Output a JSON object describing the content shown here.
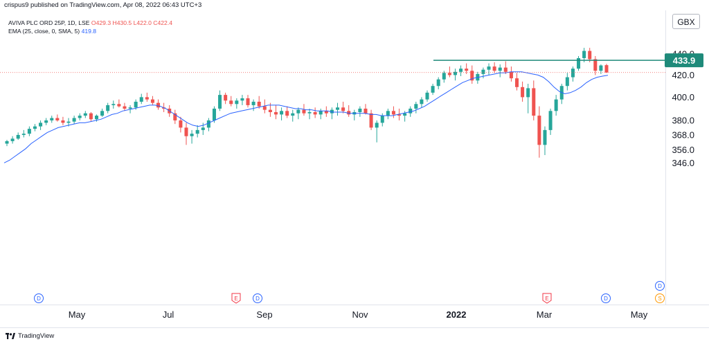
{
  "header": {
    "publisher": "crispus9 published on TradingView.com, Apr 08, 2022 06:43 UTC+3"
  },
  "legend": {
    "symbol": "AVIVA PLC ORD 25P, 1D, LSE",
    "open": "O429.3",
    "high": "H430.5",
    "low": "L422.0",
    "close": "C422.4",
    "ema_label": "EMA (25, close, 0, SMA, 5)",
    "ema_value": "419.8"
  },
  "currency": "GBX",
  "footer": {
    "brand": "TradingView"
  },
  "colors": {
    "up": "#26a69a",
    "down": "#ef5350",
    "ema": "#2962ff",
    "level": "#1e8a7a",
    "last_price": "#ef5350"
  },
  "chart_data": {
    "type": "candlestick",
    "y_ticks": [
      "440.0",
      "420.0",
      "400.0",
      "380.0",
      "368.0",
      "356.0",
      "346.0"
    ],
    "x_ticks": [
      "May",
      "Jul",
      "Sep",
      "Nov",
      "2022",
      "Mar",
      "May"
    ],
    "y_range": [
      338,
      452
    ],
    "y_scale": "log",
    "level_line": {
      "value": 433.9,
      "label": "433.9"
    },
    "last_price": 422.4,
    "events": [
      {
        "type": "D",
        "label": "D"
      },
      {
        "type": "E",
        "label": "E"
      },
      {
        "type": "D",
        "label": "D"
      },
      {
        "type": "E",
        "label": "E"
      },
      {
        "type": "D",
        "label": "D"
      },
      {
        "type": "D",
        "label": "D"
      },
      {
        "type": "S",
        "label": "S"
      }
    ],
    "ema_series": [
      346,
      348,
      351,
      354,
      357,
      361,
      364,
      367,
      370,
      372,
      374,
      375,
      376,
      377,
      378,
      378,
      379,
      380,
      381,
      383,
      385,
      386,
      388,
      389,
      390,
      391,
      392,
      393,
      393,
      392,
      390,
      387,
      384,
      381,
      378,
      376,
      375,
      376,
      378,
      380,
      382,
      384,
      386,
      387,
      388,
      389,
      390,
      391,
      392,
      393,
      393,
      393,
      392,
      391,
      390,
      390,
      389,
      389,
      388,
      388,
      388,
      387,
      387,
      387,
      386,
      386,
      386,
      386,
      385,
      385,
      384,
      384,
      384,
      385,
      386,
      387,
      388,
      390,
      392,
      395,
      398,
      401,
      404,
      407,
      410,
      413,
      415,
      417,
      418,
      419,
      420,
      421,
      422,
      422,
      423,
      423,
      423,
      422,
      421,
      420,
      418,
      414,
      409,
      405,
      403,
      404,
      406,
      409,
      413,
      416,
      418,
      419,
      419.8
    ],
    "candles": [
      [
        361,
        364,
        359,
        363
      ],
      [
        363,
        367,
        361,
        365
      ],
      [
        365,
        370,
        364,
        368
      ],
      [
        368,
        372,
        366,
        369
      ],
      [
        369,
        375,
        367,
        373
      ],
      [
        373,
        377,
        371,
        375
      ],
      [
        375,
        380,
        372,
        378
      ],
      [
        378,
        382,
        376,
        380
      ],
      [
        380,
        384,
        378,
        382
      ],
      [
        382,
        385,
        379,
        380
      ],
      [
        380,
        383,
        376,
        378
      ],
      [
        378,
        382,
        375,
        379
      ],
      [
        379,
        384,
        377,
        382
      ],
      [
        382,
        386,
        380,
        384
      ],
      [
        384,
        388,
        382,
        386
      ],
      [
        386,
        387,
        379,
        381
      ],
      [
        381,
        385,
        379,
        384
      ],
      [
        384,
        390,
        383,
        388
      ],
      [
        388,
        395,
        386,
        393
      ],
      [
        393,
        397,
        390,
        394
      ],
      [
        394,
        398,
        391,
        392
      ],
      [
        392,
        395,
        388,
        390
      ],
      [
        390,
        393,
        386,
        391
      ],
      [
        391,
        398,
        389,
        396
      ],
      [
        396,
        403,
        394,
        400
      ],
      [
        400,
        404,
        396,
        398
      ],
      [
        398,
        401,
        393,
        395
      ],
      [
        395,
        398,
        389,
        391
      ],
      [
        391,
        395,
        387,
        390
      ],
      [
        390,
        393,
        383,
        386
      ],
      [
        386,
        389,
        377,
        380
      ],
      [
        380,
        383,
        370,
        374
      ],
      [
        374,
        378,
        360,
        367
      ],
      [
        367,
        372,
        361,
        369
      ],
      [
        369,
        376,
        366,
        372
      ],
      [
        372,
        378,
        368,
        374
      ],
      [
        374,
        382,
        371,
        380
      ],
      [
        380,
        392,
        378,
        390
      ],
      [
        390,
        406,
        388,
        402
      ],
      [
        402,
        404,
        394,
        397
      ],
      [
        397,
        401,
        392,
        394
      ],
      [
        394,
        399,
        390,
        397
      ],
      [
        397,
        402,
        393,
        399
      ],
      [
        399,
        402,
        391,
        393
      ],
      [
        393,
        398,
        388,
        396
      ],
      [
        396,
        401,
        390,
        392
      ],
      [
        392,
        398,
        386,
        389
      ],
      [
        389,
        395,
        383,
        387
      ],
      [
        387,
        393,
        381,
        385
      ],
      [
        385,
        391,
        380,
        388
      ],
      [
        388,
        392,
        382,
        384
      ],
      [
        384,
        389,
        379,
        386
      ],
      [
        386,
        391,
        381,
        389
      ],
      [
        389,
        394,
        384,
        386
      ],
      [
        386,
        390,
        381,
        387
      ],
      [
        387,
        391,
        382,
        385
      ],
      [
        385,
        390,
        381,
        388
      ],
      [
        388,
        392,
        383,
        386
      ],
      [
        386,
        391,
        381,
        389
      ],
      [
        389,
        395,
        384,
        391
      ],
      [
        391,
        396,
        386,
        388
      ],
      [
        388,
        393,
        383,
        385
      ],
      [
        385,
        389,
        380,
        387
      ],
      [
        387,
        392,
        383,
        390
      ],
      [
        390,
        394,
        385,
        386
      ],
      [
        386,
        389,
        372,
        374
      ],
      [
        374,
        380,
        362,
        378
      ],
      [
        378,
        386,
        375,
        384
      ],
      [
        384,
        390,
        381,
        388
      ],
      [
        388,
        392,
        382,
        385
      ],
      [
        385,
        390,
        380,
        384
      ],
      [
        384,
        388,
        379,
        386
      ],
      [
        386,
        392,
        383,
        390
      ],
      [
        390,
        396,
        386,
        394
      ],
      [
        394,
        400,
        391,
        398
      ],
      [
        398,
        406,
        396,
        404
      ],
      [
        404,
        412,
        402,
        410
      ],
      [
        410,
        418,
        407,
        416
      ],
      [
        416,
        424,
        413,
        422
      ],
      [
        422,
        428,
        418,
        420
      ],
      [
        420,
        426,
        415,
        423
      ],
      [
        423,
        429,
        419,
        426
      ],
      [
        426,
        431,
        421,
        424
      ],
      [
        424,
        429,
        412,
        415
      ],
      [
        415,
        423,
        412,
        421
      ],
      [
        421,
        427,
        417,
        425
      ],
      [
        425,
        431,
        420,
        428
      ],
      [
        428,
        432,
        422,
        424
      ],
      [
        424,
        430,
        418,
        427
      ],
      [
        427,
        433,
        421,
        423
      ],
      [
        423,
        428,
        414,
        417
      ],
      [
        417,
        422,
        406,
        409
      ],
      [
        409,
        414,
        396,
        400
      ],
      [
        400,
        412,
        386,
        408
      ],
      [
        408,
        415,
        380,
        384
      ],
      [
        384,
        392,
        350,
        360
      ],
      [
        360,
        375,
        352,
        372
      ],
      [
        372,
        390,
        368,
        388
      ],
      [
        388,
        402,
        384,
        398
      ],
      [
        398,
        412,
        394,
        410
      ],
      [
        410,
        422,
        406,
        418
      ],
      [
        418,
        428,
        414,
        426
      ],
      [
        426,
        438,
        424,
        436
      ],
      [
        436,
        446,
        432,
        443
      ],
      [
        443,
        446,
        432,
        435
      ],
      [
        435,
        438,
        420,
        424
      ],
      [
        424,
        430,
        421,
        429
      ],
      [
        429.3,
        430.5,
        422.0,
        422.4
      ]
    ]
  }
}
